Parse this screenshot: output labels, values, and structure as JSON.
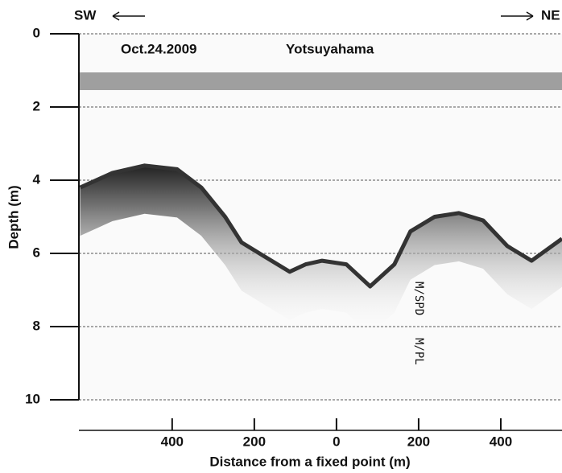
{
  "chart_data": {
    "type": "line",
    "title": "Oct.24.2009",
    "subtitle": "Yotsuyahama",
    "left_label": "SW",
    "right_label": "NE",
    "annotations": [
      "M/SPD",
      "M/PL"
    ],
    "x_label": "Distance from a fixed point (m)",
    "y_label": "Depth (m)",
    "x": [
      -624,
      -545,
      -467,
      -388,
      -329,
      -271,
      -231,
      -173,
      -114,
      -75,
      -35,
      24,
      82,
      141,
      180,
      239,
      298,
      357,
      416,
      475,
      549
    ],
    "values": [
      4.2,
      3.8,
      3.6,
      3.7,
      4.2,
      5.0,
      5.7,
      6.1,
      6.5,
      6.3,
      6.2,
      6.3,
      6.9,
      6.3,
      5.4,
      5.0,
      4.9,
      5.1,
      5.8,
      6.2,
      5.6
    ],
    "color": "#333333",
    "xlim": [
      -627,
      549
    ],
    "ylim": [
      10,
      0
    ],
    "y_inverted": true,
    "xticks": [
      {
        "value": -400,
        "label": "400"
      },
      {
        "value": -200,
        "label": "200"
      },
      0,
      200,
      400
    ],
    "yticks": [
      0,
      2,
      4,
      6,
      8,
      10
    ],
    "grid": true
  }
}
